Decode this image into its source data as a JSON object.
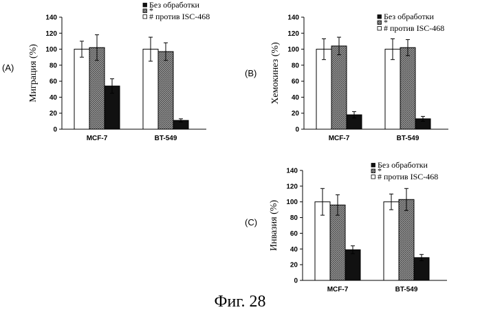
{
  "figure_caption": "Фиг. 28",
  "colors": {
    "untreated": "#111111",
    "star": "#8c8c8c",
    "anti": "#ffffff",
    "axis": "#000000"
  },
  "chart_data": [
    {
      "type": "bar",
      "panel_label": "(A)",
      "ylabel": "Миграция (%)",
      "ylim": [
        0,
        140
      ],
      "yticks": [
        0,
        20,
        40,
        60,
        80,
        100,
        120,
        140
      ],
      "categories": [
        "MCF-7",
        "BT-549"
      ],
      "legend_position": "top-right",
      "series": [
        {
          "name": "# против ISC-468",
          "values": [
            100,
            100
          ],
          "errors": [
            10,
            15
          ]
        },
        {
          "name": "*",
          "values": [
            102,
            97
          ],
          "errors": [
            16,
            11
          ]
        },
        {
          "name": "Без обработки",
          "values": [
            54,
            11
          ],
          "errors": [
            9,
            2
          ]
        }
      ]
    },
    {
      "type": "bar",
      "panel_label": "(B)",
      "ylabel": "Хемокинез (%)",
      "ylim": [
        0,
        140
      ],
      "yticks": [
        0,
        20,
        40,
        60,
        80,
        100,
        120,
        140
      ],
      "categories": [
        "MCF-7",
        "BT-549"
      ],
      "legend_position": "top-right",
      "series": [
        {
          "name": "# против ISC-468",
          "values": [
            100,
            100
          ],
          "errors": [
            13,
            13
          ]
        },
        {
          "name": "*",
          "values": [
            104,
            102
          ],
          "errors": [
            11,
            10
          ]
        },
        {
          "name": "Без обработки",
          "values": [
            18,
            13
          ],
          "errors": [
            4,
            3
          ]
        }
      ]
    },
    {
      "type": "bar",
      "panel_label": "(C)",
      "ylabel": "Инвазия (%)",
      "ylim": [
        0,
        140
      ],
      "yticks": [
        0,
        20,
        40,
        60,
        80,
        100,
        120,
        140
      ],
      "categories": [
        "MCF-7",
        "BT-549"
      ],
      "legend_position": "top-right",
      "series": [
        {
          "name": "# против ISC-468",
          "values": [
            100,
            100
          ],
          "errors": [
            17,
            10
          ]
        },
        {
          "name": "*",
          "values": [
            96,
            103
          ],
          "errors": [
            13,
            14
          ]
        },
        {
          "name": "Без обработки",
          "values": [
            39,
            29
          ],
          "errors": [
            5,
            4
          ]
        }
      ]
    }
  ]
}
